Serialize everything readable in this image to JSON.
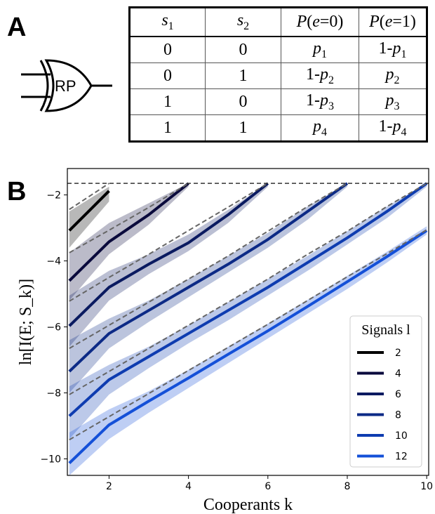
{
  "panel_a": {
    "letter": "A",
    "gate_label": "RP",
    "table": {
      "headers": [
        {
          "pre": "",
          "var": "s",
          "sub": "1",
          "post": ""
        },
        {
          "pre": "",
          "var": "s",
          "sub": "2",
          "post": ""
        },
        {
          "pre": "P(",
          "var": "e",
          "sub": "",
          "post": "=0)"
        },
        {
          "pre": "P(",
          "var": "e",
          "sub": "",
          "post": "=1)"
        }
      ],
      "rows": [
        [
          {
            "t": "0"
          },
          {
            "t": "0"
          },
          {
            "pre": "",
            "var": "p",
            "sub": "1"
          },
          {
            "pre": "1-",
            "var": "p",
            "sub": "1"
          }
        ],
        [
          {
            "t": "0"
          },
          {
            "t": "1"
          },
          {
            "pre": "1-",
            "var": "p",
            "sub": "2"
          },
          {
            "pre": "",
            "var": "p",
            "sub": "2"
          }
        ],
        [
          {
            "t": "1"
          },
          {
            "t": "0"
          },
          {
            "pre": "1-",
            "var": "p",
            "sub": "3"
          },
          {
            "pre": "",
            "var": "p",
            "sub": "3"
          }
        ],
        [
          {
            "t": "1"
          },
          {
            "t": "1"
          },
          {
            "pre": "",
            "var": "p",
            "sub": "4"
          },
          {
            "pre": "1-",
            "var": "p",
            "sub": "4"
          }
        ]
      ]
    }
  },
  "panel_b": {
    "letter": "B",
    "chart_data": {
      "type": "line",
      "xlabel": "Cooperants k",
      "ylabel": "ln[I(E; S_k)]",
      "xlim": [
        0.95,
        10.05
      ],
      "ylim": [
        -10.5,
        -1.2
      ],
      "xticks": [
        2,
        4,
        6,
        8,
        10
      ],
      "yticks": [
        -2,
        -4,
        -6,
        -8,
        -10
      ],
      "grid": false,
      "legend": {
        "title": "Signals l",
        "placement": "lower-right"
      },
      "upper_bound_y": -1.65,
      "series": [
        {
          "name": "2",
          "color": "#000000",
          "x": [
            1,
            2
          ],
          "y": [
            -3.08,
            -1.88
          ],
          "lo": [
            -3.6,
            -2.2
          ],
          "hi": [
            -2.5,
            -1.75
          ],
          "dashed": [
            -2.44,
            -1.65
          ]
        },
        {
          "name": "4",
          "color": "#0a0a3c",
          "x": [
            1,
            2,
            3,
            4
          ],
          "y": [
            -4.6,
            -3.42,
            -2.6,
            -1.65
          ],
          "lo": [
            -5.2,
            -3.8,
            -2.9,
            -1.75
          ],
          "hi": [
            -3.75,
            -2.85,
            -2.25,
            -1.65
          ],
          "dashed": [
            -3.75,
            -3.07,
            -2.38,
            -1.65
          ]
        },
        {
          "name": "6",
          "color": "#0a1a60",
          "x": [
            1,
            2,
            3,
            4,
            5,
            6
          ],
          "y": [
            -5.97,
            -4.8,
            -4.1,
            -3.45,
            -2.6,
            -1.65
          ],
          "lo": [
            -6.6,
            -5.2,
            -4.4,
            -3.7,
            -2.85,
            -1.75
          ],
          "hi": [
            -5.05,
            -4.3,
            -3.8,
            -3.2,
            -2.45,
            -1.65
          ],
          "dashed": [
            -5.22,
            -4.5,
            -3.8,
            -3.08,
            -2.37,
            -1.65
          ]
        },
        {
          "name": "8",
          "color": "#0c2a86",
          "x": [
            1,
            2,
            3,
            4,
            5,
            6,
            7,
            8
          ],
          "y": [
            -7.35,
            -6.2,
            -5.5,
            -4.8,
            -4.1,
            -3.35,
            -2.5,
            -1.65
          ],
          "lo": [
            -8.0,
            -6.65,
            -5.85,
            -5.1,
            -4.35,
            -3.6,
            -2.75,
            -1.75
          ],
          "hi": [
            -6.4,
            -5.75,
            -5.2,
            -4.55,
            -3.85,
            -3.15,
            -2.35,
            -1.65
          ],
          "dashed": [
            -6.65,
            -5.95,
            -5.25,
            -4.55,
            -3.85,
            -3.1,
            -2.35,
            -1.65
          ]
        },
        {
          "name": "10",
          "color": "#0e3cb0",
          "x": [
            1,
            2,
            3,
            4,
            5,
            6,
            7,
            8,
            9,
            10
          ],
          "y": [
            -8.7,
            -7.6,
            -6.9,
            -6.2,
            -5.5,
            -4.8,
            -4.05,
            -3.3,
            -2.5,
            -1.65
          ],
          "lo": [
            -9.4,
            -8.05,
            -7.25,
            -6.5,
            -5.8,
            -5.05,
            -4.3,
            -3.5,
            -2.7,
            -1.75
          ],
          "hi": [
            -7.8,
            -7.15,
            -6.6,
            -5.95,
            -5.25,
            -4.55,
            -3.85,
            -3.1,
            -2.35,
            -1.65
          ],
          "dashed": [
            -8.05,
            -7.35,
            -6.65,
            -5.95,
            -5.25,
            -4.55,
            -3.8,
            -3.1,
            -2.35,
            -1.65
          ]
        },
        {
          "name": "12",
          "color": "#1450d8",
          "x": [
            1,
            2,
            3,
            4,
            5,
            6,
            7,
            8,
            9,
            10
          ],
          "y": [
            -10.13,
            -8.97,
            -8.25,
            -7.55,
            -6.83,
            -6.12,
            -5.38,
            -4.63,
            -3.87,
            -3.08
          ],
          "lo": [
            -10.5,
            -9.4,
            -8.6,
            -7.85,
            -7.1,
            -6.35,
            -5.6,
            -4.85,
            -4.05,
            -3.2
          ],
          "hi": [
            -9.2,
            -8.5,
            -7.95,
            -7.3,
            -6.6,
            -5.9,
            -5.18,
            -4.45,
            -3.72,
            -2.95
          ],
          "dashed": [
            -9.42,
            -8.72,
            -8.02,
            -7.32,
            -6.62,
            -5.92,
            -5.2,
            -4.48,
            -3.78,
            -3.06
          ]
        }
      ]
    }
  }
}
